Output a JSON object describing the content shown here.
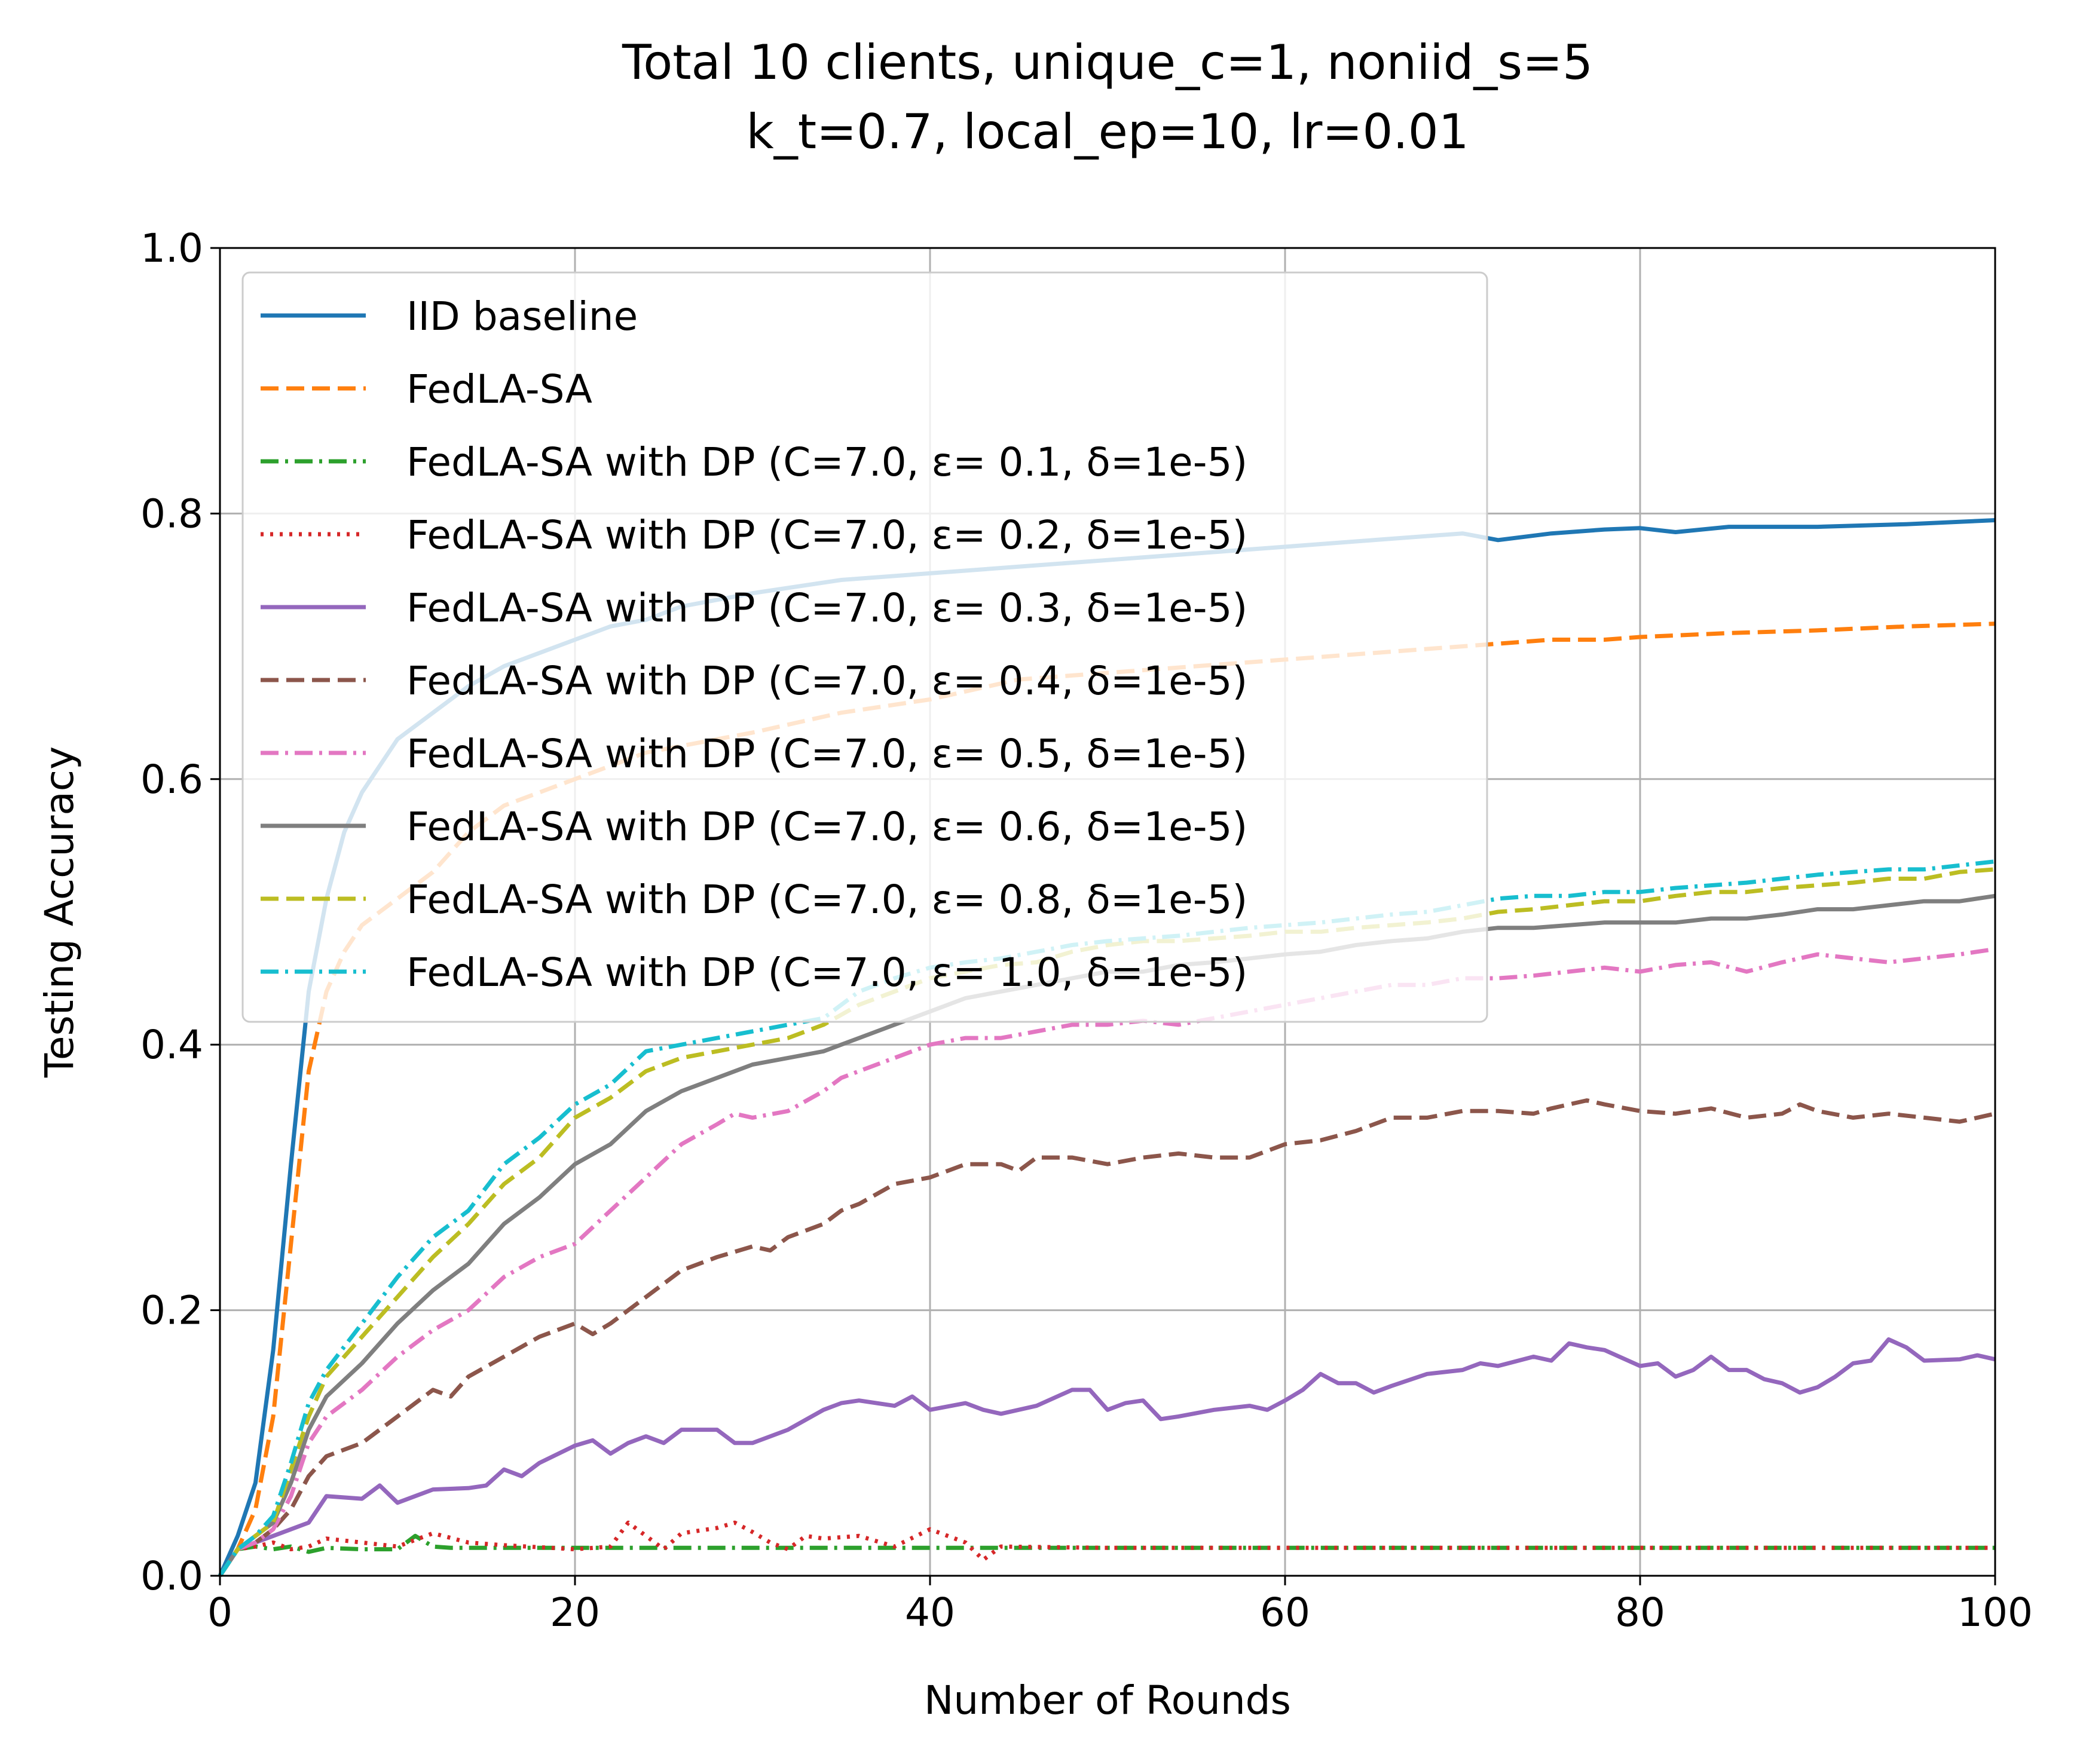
{
  "chart_data": {
    "type": "line",
    "title": "Total 10 clients, unique_c=1, noniid_s=5",
    "subtitle": "k_t=0.7, local_ep=10, lr=0.01",
    "xlabel": "Number of Rounds",
    "ylabel": "Testing Accuracy",
    "xlim": [
      0,
      100
    ],
    "ylim": [
      0,
      1.0
    ],
    "xticks": [
      "0",
      "20",
      "40",
      "60",
      "80",
      "100"
    ],
    "yticks": [
      "0.0",
      "0.2",
      "0.4",
      "0.6",
      "0.8",
      "1.0"
    ],
    "grid": true,
    "legend_position": "upper-left",
    "series": [
      {
        "name": "IID baseline",
        "color": "#1f77b4",
        "dash": "solid",
        "x": [
          0,
          1,
          2,
          3,
          4,
          5,
          6,
          7,
          8,
          9,
          10,
          12,
          14,
          16,
          18,
          20,
          22,
          24,
          26,
          28,
          30,
          35,
          40,
          45,
          50,
          55,
          60,
          65,
          70,
          72,
          75,
          78,
          80,
          82,
          85,
          88,
          90,
          95,
          100
        ],
        "y": [
          0,
          0.03,
          0.07,
          0.17,
          0.31,
          0.44,
          0.51,
          0.56,
          0.59,
          0.61,
          0.63,
          0.65,
          0.67,
          0.685,
          0.695,
          0.705,
          0.715,
          0.72,
          0.73,
          0.735,
          0.74,
          0.75,
          0.755,
          0.76,
          0.765,
          0.77,
          0.775,
          0.78,
          0.785,
          0.78,
          0.785,
          0.788,
          0.789,
          0.786,
          0.79,
          0.79,
          0.79,
          0.792,
          0.795
        ]
      },
      {
        "name": "FedLA-SA",
        "color": "#ff7f0e",
        "dash": "dashed",
        "x": [
          0,
          1,
          2,
          3,
          4,
          5,
          6,
          7,
          8,
          9,
          10,
          12,
          14,
          16,
          18,
          20,
          22,
          24,
          26,
          28,
          30,
          35,
          40,
          45,
          50,
          55,
          60,
          65,
          70,
          72,
          75,
          78,
          80,
          85,
          90,
          95,
          100
        ],
        "y": [
          0,
          0.02,
          0.05,
          0.12,
          0.25,
          0.38,
          0.44,
          0.47,
          0.49,
          0.5,
          0.51,
          0.53,
          0.56,
          0.58,
          0.59,
          0.6,
          0.61,
          0.62,
          0.625,
          0.63,
          0.635,
          0.65,
          0.66,
          0.675,
          0.68,
          0.685,
          0.69,
          0.695,
          0.7,
          0.702,
          0.705,
          0.705,
          0.707,
          0.71,
          0.712,
          0.715,
          0.717
        ]
      },
      {
        "name": "FedLA-SA with DP (C=7.0, ε= 0.1, δ=1e-5)",
        "color": "#2ca02c",
        "dash": "dashdot",
        "x": [
          0,
          1,
          2,
          3,
          4,
          5,
          6,
          8,
          10,
          11,
          12,
          13,
          15,
          20,
          30,
          40,
          50,
          60,
          70,
          80,
          90,
          100
        ],
        "y": [
          0,
          0.02,
          0.022,
          0.02,
          0.022,
          0.018,
          0.021,
          0.02,
          0.02,
          0.03,
          0.022,
          0.021,
          0.021,
          0.021,
          0.021,
          0.021,
          0.021,
          0.021,
          0.021,
          0.021,
          0.021,
          0.021
        ]
      },
      {
        "name": "FedLA-SA with DP (C=7.0, ε= 0.2, δ=1e-5)",
        "color": "#d62728",
        "dash": "dotted",
        "x": [
          0,
          1,
          2,
          3,
          4,
          5,
          6,
          8,
          10,
          12,
          14,
          16,
          20,
          22,
          23,
          24,
          25,
          26,
          28,
          29,
          30,
          31,
          32,
          33,
          34,
          36,
          38,
          40,
          41,
          42,
          43,
          44,
          50,
          60,
          70,
          80,
          90,
          100
        ],
        "y": [
          0,
          0.02,
          0.022,
          0.025,
          0.02,
          0.022,
          0.028,
          0.025,
          0.022,
          0.032,
          0.025,
          0.023,
          0.02,
          0.022,
          0.04,
          0.03,
          0.02,
          0.032,
          0.036,
          0.04,
          0.033,
          0.025,
          0.02,
          0.03,
          0.028,
          0.03,
          0.022,
          0.035,
          0.03,
          0.025,
          0.012,
          0.022,
          0.021,
          0.021,
          0.021,
          0.021,
          0.021,
          0.021
        ]
      },
      {
        "name": "FedLA-SA with DP (C=7.0, ε= 0.3, δ=1e-5)",
        "color": "#9467bd",
        "dash": "solid",
        "x": [
          0,
          1,
          2,
          3,
          4,
          5,
          6,
          8,
          9,
          10,
          11,
          12,
          14,
          15,
          16,
          17,
          18,
          20,
          21,
          22,
          23,
          24,
          25,
          26,
          28,
          29,
          30,
          32,
          34,
          35,
          36,
          38,
          39,
          40,
          42,
          43,
          44,
          46,
          48,
          49,
          50,
          51,
          52,
          53,
          54,
          56,
          58,
          59,
          60,
          61,
          62,
          63,
          64,
          65,
          66,
          68,
          70,
          71,
          72,
          74,
          75,
          76,
          77,
          78,
          80,
          81,
          82,
          83,
          84,
          85,
          86,
          87,
          88,
          89,
          90,
          91,
          92,
          93,
          94,
          95,
          96,
          98,
          99,
          100
        ],
        "y": [
          0,
          0.02,
          0.025,
          0.03,
          0.035,
          0.04,
          0.06,
          0.058,
          0.068,
          0.055,
          0.06,
          0.065,
          0.066,
          0.068,
          0.08,
          0.075,
          0.085,
          0.098,
          0.102,
          0.092,
          0.1,
          0.105,
          0.1,
          0.11,
          0.11,
          0.1,
          0.1,
          0.11,
          0.125,
          0.13,
          0.132,
          0.128,
          0.135,
          0.125,
          0.13,
          0.125,
          0.122,
          0.128,
          0.14,
          0.14,
          0.125,
          0.13,
          0.132,
          0.118,
          0.12,
          0.125,
          0.128,
          0.125,
          0.132,
          0.14,
          0.152,
          0.145,
          0.145,
          0.138,
          0.143,
          0.152,
          0.155,
          0.16,
          0.158,
          0.165,
          0.162,
          0.175,
          0.172,
          0.17,
          0.158,
          0.16,
          0.15,
          0.155,
          0.165,
          0.155,
          0.155,
          0.148,
          0.145,
          0.138,
          0.142,
          0.15,
          0.16,
          0.162,
          0.178,
          0.172,
          0.162,
          0.163,
          0.166,
          0.163
        ]
      },
      {
        "name": "FedLA-SA with DP (C=7.0, ε= 0.4, δ=1e-5)",
        "color": "#8c564b",
        "dash": "dashed",
        "x": [
          0,
          1,
          2,
          3,
          4,
          5,
          6,
          8,
          10,
          12,
          13,
          14,
          16,
          18,
          20,
          21,
          22,
          24,
          25,
          26,
          28,
          30,
          31,
          32,
          34,
          35,
          36,
          38,
          40,
          42,
          44,
          45,
          46,
          48,
          50,
          52,
          54,
          56,
          58,
          60,
          62,
          64,
          66,
          68,
          70,
          72,
          74,
          75,
          77,
          78,
          80,
          82,
          84,
          86,
          88,
          89,
          90,
          92,
          94,
          96,
          98,
          100
        ],
        "y": [
          0,
          0.02,
          0.025,
          0.035,
          0.05,
          0.075,
          0.09,
          0.1,
          0.12,
          0.14,
          0.135,
          0.15,
          0.165,
          0.18,
          0.19,
          0.182,
          0.19,
          0.21,
          0.22,
          0.23,
          0.24,
          0.248,
          0.245,
          0.255,
          0.265,
          0.275,
          0.28,
          0.295,
          0.3,
          0.31,
          0.31,
          0.305,
          0.315,
          0.315,
          0.31,
          0.315,
          0.318,
          0.315,
          0.315,
          0.325,
          0.328,
          0.335,
          0.345,
          0.345,
          0.35,
          0.35,
          0.348,
          0.352,
          0.358,
          0.355,
          0.35,
          0.348,
          0.352,
          0.345,
          0.348,
          0.355,
          0.35,
          0.345,
          0.348,
          0.345,
          0.342,
          0.348
        ]
      },
      {
        "name": "FedLA-SA with DP (C=7.0, ε= 0.5, δ=1e-5)",
        "color": "#e377c2",
        "dash": "dashdot",
        "x": [
          0,
          1,
          2,
          3,
          4,
          5,
          6,
          8,
          10,
          12,
          14,
          16,
          18,
          20,
          22,
          24,
          26,
          28,
          29,
          30,
          32,
          34,
          35,
          36,
          38,
          40,
          42,
          44,
          46,
          48,
          50,
          52,
          54,
          56,
          58,
          60,
          62,
          64,
          66,
          68,
          70,
          72,
          74,
          76,
          78,
          80,
          82,
          84,
          86,
          88,
          90,
          92,
          94,
          96,
          98,
          100
        ],
        "y": [
          0,
          0.02,
          0.025,
          0.035,
          0.06,
          0.1,
          0.12,
          0.14,
          0.165,
          0.185,
          0.2,
          0.225,
          0.24,
          0.25,
          0.275,
          0.3,
          0.325,
          0.34,
          0.348,
          0.345,
          0.35,
          0.365,
          0.375,
          0.38,
          0.39,
          0.4,
          0.405,
          0.405,
          0.41,
          0.415,
          0.415,
          0.418,
          0.415,
          0.42,
          0.425,
          0.43,
          0.435,
          0.44,
          0.445,
          0.445,
          0.45,
          0.45,
          0.452,
          0.455,
          0.458,
          0.455,
          0.46,
          0.462,
          0.455,
          0.462,
          0.468,
          0.465,
          0.462,
          0.465,
          0.468,
          0.472
        ]
      },
      {
        "name": "FedLA-SA with DP (C=7.0, ε= 0.6, δ=1e-5)",
        "color": "#7f7f7f",
        "dash": "solid",
        "x": [
          0,
          1,
          2,
          3,
          4,
          5,
          6,
          8,
          10,
          12,
          14,
          16,
          18,
          20,
          22,
          24,
          26,
          28,
          30,
          32,
          34,
          36,
          38,
          40,
          42,
          44,
          46,
          48,
          50,
          52,
          54,
          56,
          58,
          60,
          62,
          64,
          66,
          68,
          70,
          72,
          74,
          76,
          78,
          80,
          82,
          84,
          86,
          88,
          90,
          92,
          94,
          96,
          98,
          100
        ],
        "y": [
          0,
          0.02,
          0.03,
          0.04,
          0.07,
          0.11,
          0.135,
          0.16,
          0.19,
          0.215,
          0.235,
          0.265,
          0.285,
          0.31,
          0.325,
          0.35,
          0.365,
          0.375,
          0.385,
          0.39,
          0.395,
          0.405,
          0.415,
          0.425,
          0.435,
          0.44,
          0.445,
          0.45,
          0.455,
          0.455,
          0.46,
          0.462,
          0.465,
          0.468,
          0.47,
          0.475,
          0.478,
          0.48,
          0.485,
          0.488,
          0.488,
          0.49,
          0.492,
          0.492,
          0.492,
          0.495,
          0.495,
          0.498,
          0.502,
          0.502,
          0.505,
          0.508,
          0.508,
          0.512
        ]
      },
      {
        "name": "FedLA-SA with DP (C=7.0, ε= 0.8, δ=1e-5)",
        "color": "#bcbd22",
        "dash": "dashed",
        "x": [
          0,
          1,
          2,
          3,
          4,
          5,
          6,
          8,
          10,
          12,
          14,
          16,
          18,
          20,
          22,
          24,
          26,
          28,
          30,
          32,
          34,
          36,
          38,
          40,
          42,
          44,
          46,
          48,
          50,
          52,
          54,
          56,
          58,
          60,
          62,
          64,
          66,
          68,
          70,
          72,
          74,
          76,
          78,
          80,
          82,
          84,
          86,
          88,
          90,
          92,
          94,
          96,
          98,
          100
        ],
        "y": [
          0,
          0.02,
          0.03,
          0.04,
          0.08,
          0.12,
          0.15,
          0.18,
          0.21,
          0.24,
          0.265,
          0.295,
          0.315,
          0.345,
          0.36,
          0.38,
          0.39,
          0.395,
          0.4,
          0.405,
          0.415,
          0.43,
          0.44,
          0.45,
          0.455,
          0.46,
          0.462,
          0.47,
          0.475,
          0.478,
          0.478,
          0.48,
          0.482,
          0.485,
          0.485,
          0.488,
          0.49,
          0.492,
          0.495,
          0.5,
          0.502,
          0.505,
          0.508,
          0.508,
          0.512,
          0.515,
          0.515,
          0.518,
          0.52,
          0.522,
          0.525,
          0.525,
          0.53,
          0.532
        ]
      },
      {
        "name": "FedLA-SA with DP (C=7.0, ε= 1.0, δ=1e-5)",
        "color": "#17becf",
        "dash": "dashdot",
        "x": [
          0,
          1,
          2,
          3,
          4,
          5,
          6,
          8,
          10,
          12,
          14,
          16,
          18,
          20,
          22,
          24,
          26,
          28,
          30,
          32,
          34,
          36,
          38,
          40,
          42,
          44,
          46,
          48,
          50,
          52,
          54,
          56,
          58,
          60,
          62,
          64,
          66,
          68,
          70,
          72,
          74,
          76,
          78,
          80,
          82,
          84,
          86,
          88,
          90,
          92,
          94,
          96,
          98,
          100
        ],
        "y": [
          0,
          0.02,
          0.03,
          0.045,
          0.085,
          0.13,
          0.155,
          0.19,
          0.225,
          0.255,
          0.275,
          0.31,
          0.33,
          0.355,
          0.37,
          0.395,
          0.4,
          0.405,
          0.41,
          0.415,
          0.42,
          0.44,
          0.45,
          0.458,
          0.462,
          0.465,
          0.47,
          0.475,
          0.478,
          0.48,
          0.482,
          0.485,
          0.488,
          0.49,
          0.492,
          0.495,
          0.498,
          0.5,
          0.505,
          0.51,
          0.512,
          0.512,
          0.515,
          0.515,
          0.518,
          0.52,
          0.522,
          0.525,
          0.528,
          0.53,
          0.532,
          0.532,
          0.535,
          0.538
        ]
      }
    ]
  }
}
